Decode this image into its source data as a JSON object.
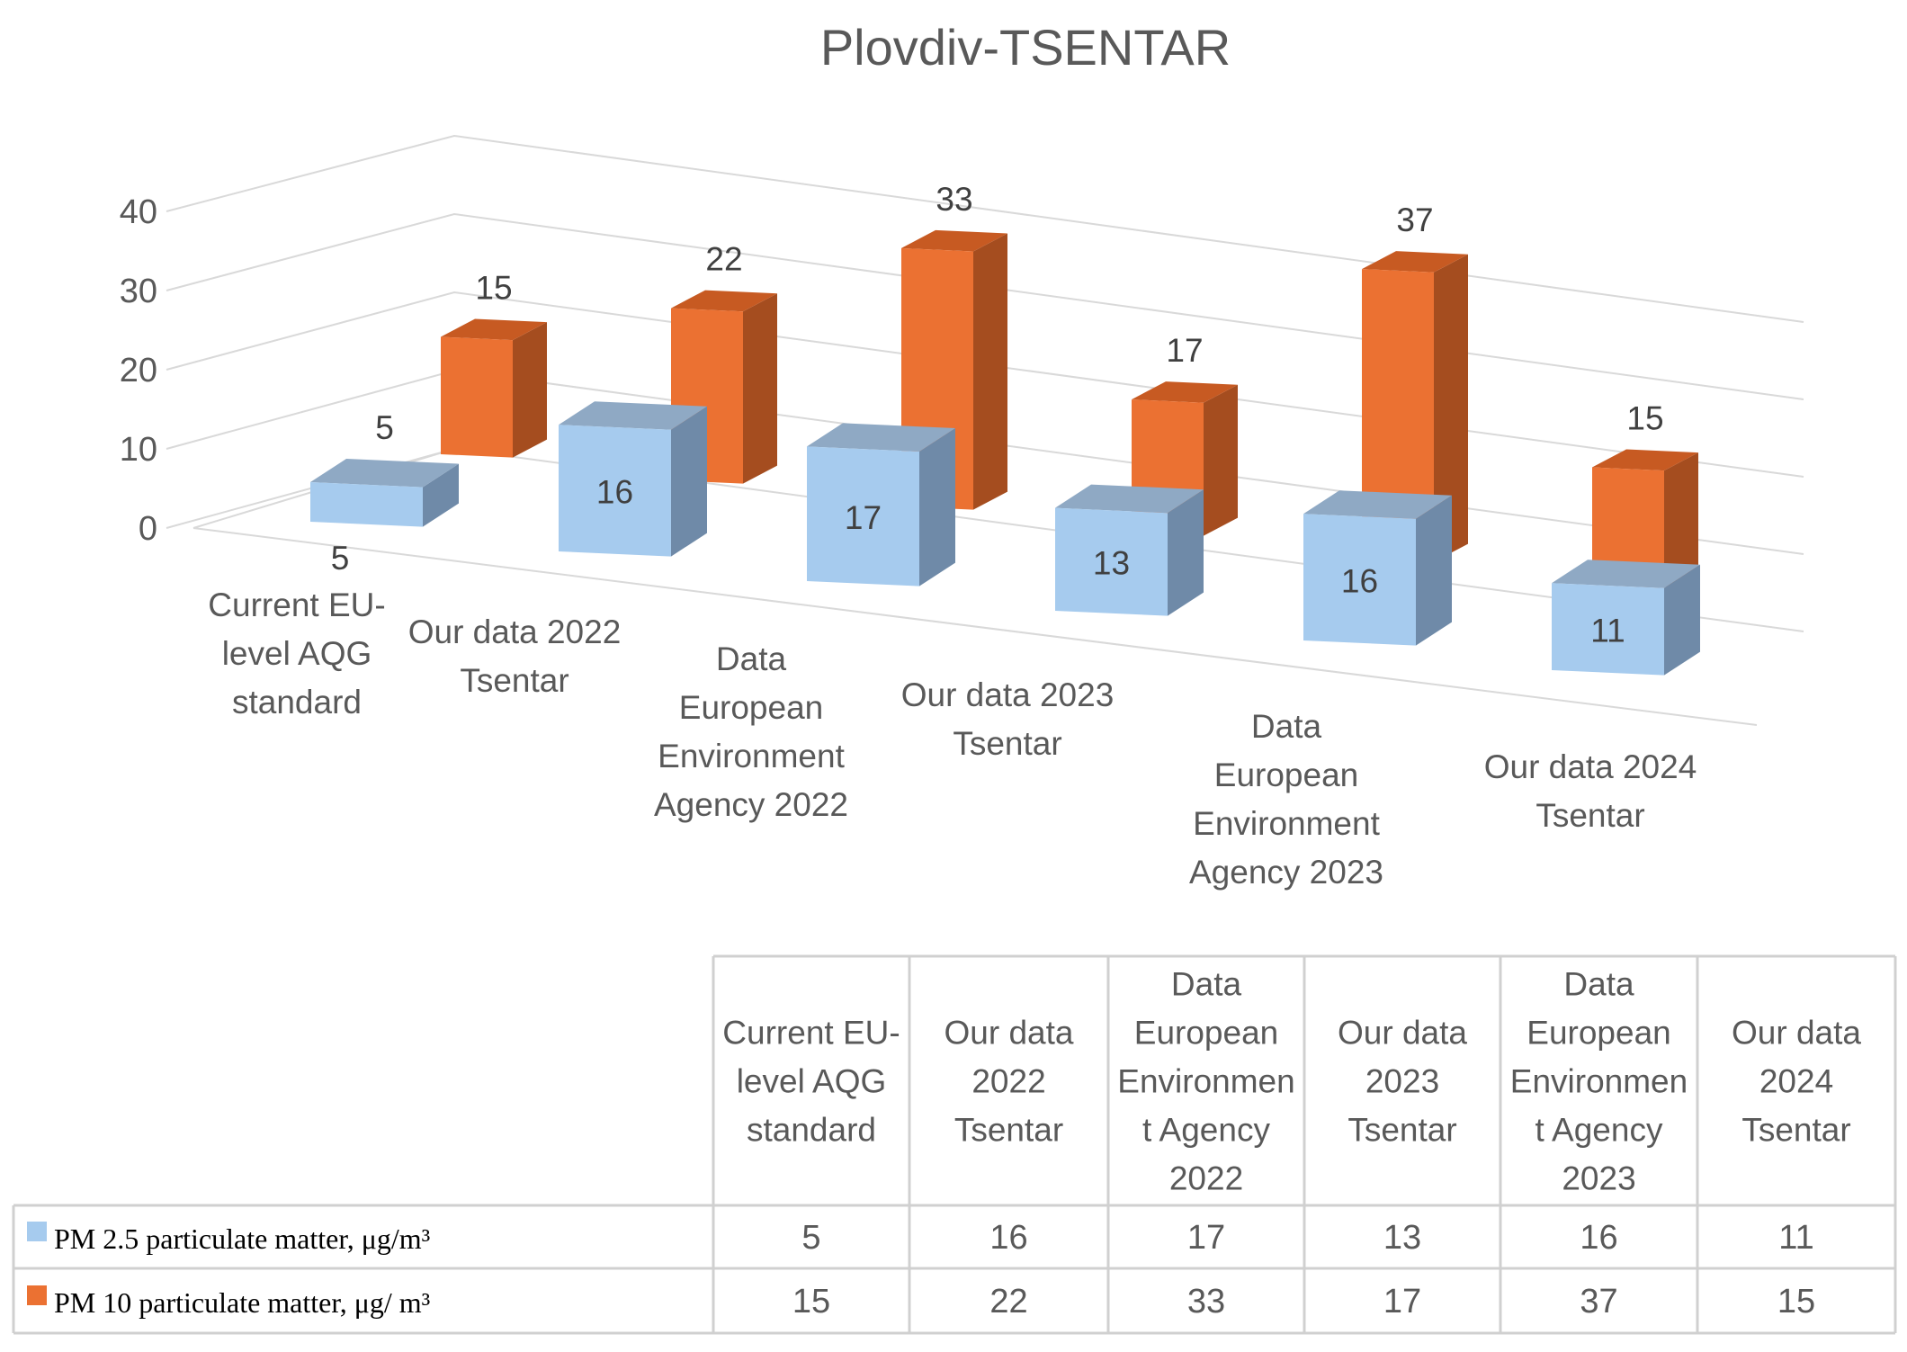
{
  "chart_data": {
    "type": "bar",
    "title": "Plovdiv-TSENTAR",
    "yticks": [
      "0",
      "10",
      "20",
      "30",
      "40"
    ],
    "ylim": [
      0,
      40
    ],
    "categories": [
      [
        "Current EU-",
        "level AQG",
        "standard"
      ],
      [
        "Our data 2022",
        "Tsentar"
      ],
      [
        "Data",
        "European",
        "Environment",
        "Agency 2022"
      ],
      [
        "Our data 2023",
        "Tsentar"
      ],
      [
        "Data",
        "European",
        "Environment",
        "Agency 2023"
      ],
      [
        "Our data 2024",
        "Tsentar"
      ]
    ],
    "series": [
      {
        "name": "PM 2.5 particulate matter, μg/m³",
        "values": [
          5,
          16,
          17,
          13,
          16,
          11
        ]
      },
      {
        "name": "PM 10 particulate matter, μg/ m³",
        "values": [
          15,
          22,
          33,
          17,
          37,
          15
        ]
      }
    ],
    "colors": {
      "pm25_front": "#a6cbee",
      "pm25_side": "#6f8aa8",
      "pm25_top": "#8fa9c4",
      "pm10_front": "#eb7132",
      "pm10_side": "#a54d1f",
      "pm10_top": "#c75a22",
      "grid": "#d9d9d9",
      "table_border": "#d0d0d0"
    },
    "table": {
      "headers": [
        [
          "Current EU-",
          "level AQG",
          "standard"
        ],
        [
          "Our data",
          "2022",
          "Tsentar"
        ],
        [
          "Data",
          "European",
          "Environmen",
          "t Agency",
          "2022"
        ],
        [
          "Our data",
          "2023",
          "Tsentar"
        ],
        [
          "Data",
          "European",
          "Environmen",
          "t Agency",
          "2023"
        ],
        [
          "Our data",
          "2024",
          "Tsentar"
        ]
      ],
      "rows": [
        {
          "legend": "PM 2.5 particulate matter, μg/m³",
          "values": [
            "5",
            "16",
            "17",
            "13",
            "16",
            "11"
          ]
        },
        {
          "legend": "PM 10 particulate matter, μg/ m³",
          "values": [
            "15",
            "22",
            "33",
            "17",
            "37",
            "15"
          ]
        }
      ]
    }
  }
}
